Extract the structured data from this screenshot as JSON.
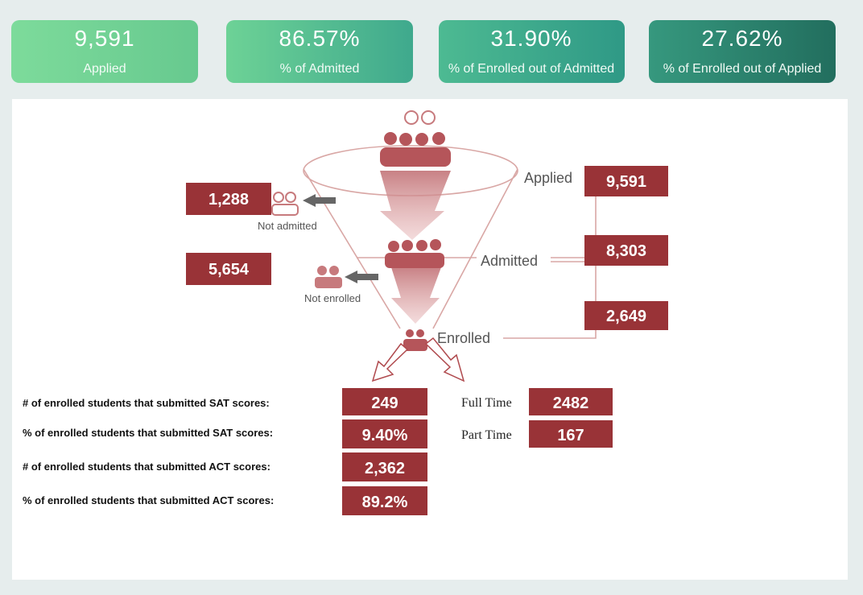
{
  "kpi_cards": [
    {
      "value": "9,591",
      "label": "Applied"
    },
    {
      "value": "86.57%",
      "label": "% of Admitted"
    },
    {
      "value": "31.90%",
      "label": "% of Enrolled out of Admitted"
    },
    {
      "value": "27.62%",
      "label": "% of Enrolled out of Applied"
    }
  ],
  "funnel": {
    "stages": [
      {
        "label": "Applied",
        "value": "9,591"
      },
      {
        "label": "Admitted",
        "value": "8,303"
      },
      {
        "label": "Enrolled",
        "value": "2,649"
      }
    ],
    "dropoffs": [
      {
        "label": "Not admitted",
        "value": "1,288"
      },
      {
        "label": "Not enrolled",
        "value": "5,654"
      }
    ]
  },
  "enrollment_stats": {
    "rows": [
      {
        "label": "# of enrolled students that submitted SAT scores:",
        "value": "249"
      },
      {
        "label": "% of enrolled students that submitted SAT scores:",
        "value": "9.40%"
      },
      {
        "label": "# of enrolled students that submitted ACT scores:",
        "value": "2,362"
      },
      {
        "label": "% of enrolled students that submitted ACT scores:",
        "value": "89.2%"
      }
    ]
  },
  "attendance": {
    "rows": [
      {
        "label": "Full Time",
        "value": "2482"
      },
      {
        "label": "Part Time",
        "value": "167"
      }
    ]
  }
}
